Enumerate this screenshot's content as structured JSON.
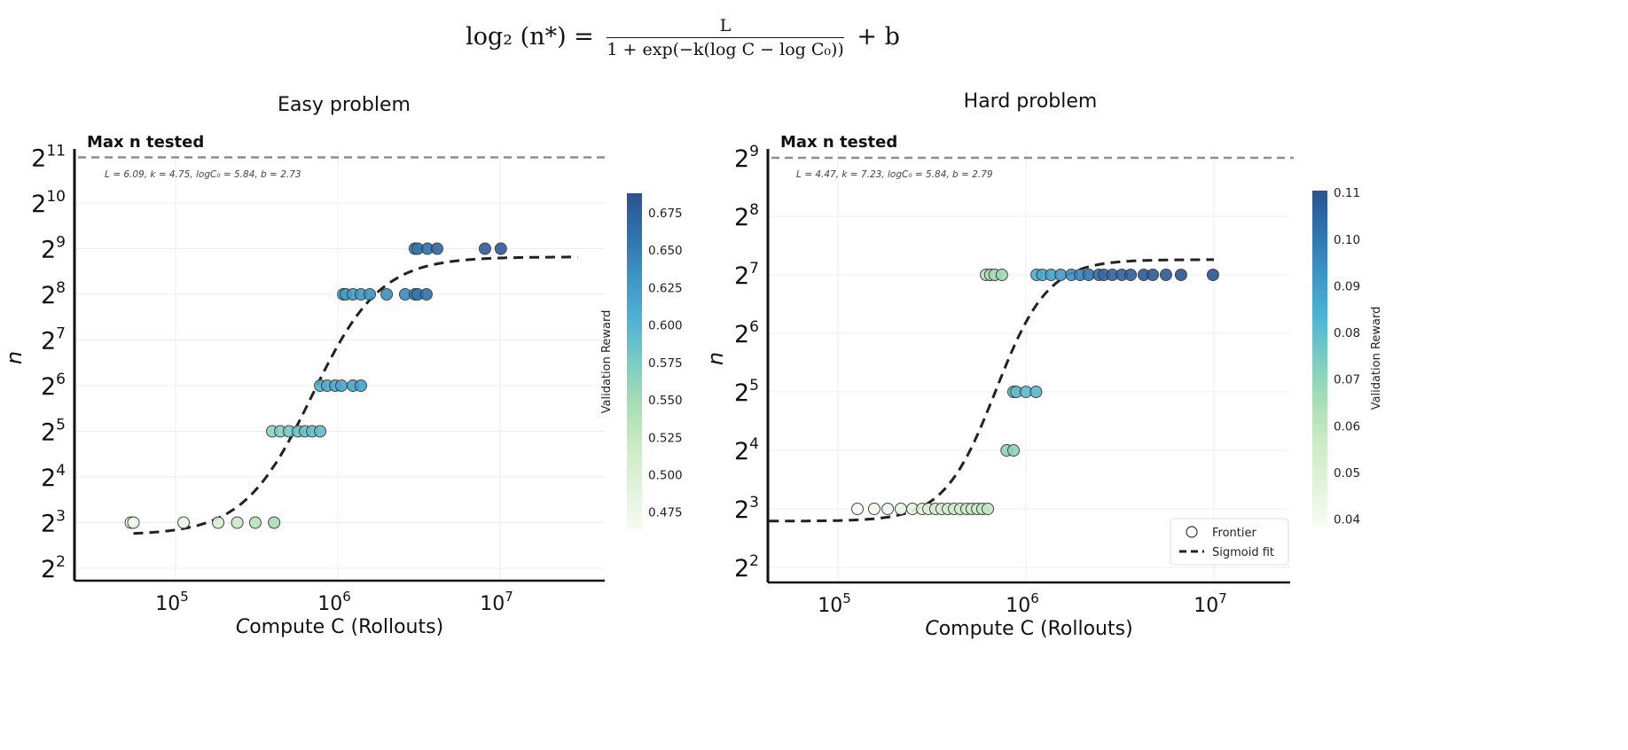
{
  "equation": {
    "lhs": "log₂ (n*) =",
    "numerator": "L",
    "denominator": "1 + exp(−k(log C − log C₀))",
    "tail": "+ b"
  },
  "colormap": [
    "#f7fcf0",
    "#e0f3db",
    "#ccebc5",
    "#a8ddb5",
    "#7bccc4",
    "#4eb3d3",
    "#3d95c6",
    "#2f72b0",
    "#2b5490"
  ],
  "chart_data": [
    {
      "type": "scatter",
      "title": "Easy problem",
      "xlabel": "Compute C (Rollouts)",
      "ylabel": "n",
      "x_scale": "log10",
      "y_scale": "log2",
      "x_ticks": [
        5,
        6,
        7
      ],
      "y_ticks": [
        2,
        3,
        4,
        5,
        6,
        7,
        8,
        9,
        10,
        11
      ],
      "xlim": [
        24000,
        44000000
      ],
      "ylim_exp": [
        2,
        11
      ],
      "grid": true,
      "max_n_label": "Max n tested",
      "max_n_exp": 11,
      "fit_params_text": "L = 6.09, k = 4.75, logC₀ = 5.84, b = 2.73",
      "fit": {
        "L": 6.09,
        "k": 4.75,
        "logC0": 5.84,
        "b": 2.73,
        "x_range": [
          55000,
          30000000
        ]
      },
      "colorbar": {
        "label": "Validation Reward",
        "ticks": [
          "0.475",
          "0.500",
          "0.525",
          "0.550",
          "0.575",
          "0.600",
          "0.625",
          "0.650",
          "0.675"
        ],
        "range": [
          0.463,
          0.688
        ]
      },
      "points": [
        [
          53000,
          3,
          0.47
        ],
        [
          55000,
          3,
          0.472
        ],
        [
          112000,
          3,
          0.478
        ],
        [
          183000,
          3,
          0.505
        ],
        [
          240000,
          3,
          0.52
        ],
        [
          310000,
          3,
          0.535
        ],
        [
          405000,
          3,
          0.545
        ],
        [
          394000,
          5,
          0.565
        ],
        [
          442000,
          5,
          0.57
        ],
        [
          500000,
          5,
          0.578
        ],
        [
          568000,
          5,
          0.585
        ],
        [
          628000,
          5,
          0.588
        ],
        [
          695000,
          5,
          0.59
        ],
        [
          778000,
          5,
          0.592
        ],
        [
          778000,
          6,
          0.605
        ],
        [
          859000,
          6,
          0.61
        ],
        [
          964000,
          6,
          0.612
        ],
        [
          1052000,
          6,
          0.615
        ],
        [
          1239000,
          6,
          0.618
        ],
        [
          1387000,
          6,
          0.62
        ],
        [
          1080000,
          8,
          0.62
        ],
        [
          1120000,
          8,
          0.622
        ],
        [
          1239000,
          8,
          0.625
        ],
        [
          1387000,
          8,
          0.628
        ],
        [
          1574000,
          8,
          0.632
        ],
        [
          2000000,
          8,
          0.635
        ],
        [
          2600000,
          8,
          0.64
        ],
        [
          2985000,
          8,
          0.65
        ],
        [
          3105000,
          8,
          0.655
        ],
        [
          3516000,
          8,
          0.66
        ],
        [
          2985000,
          9,
          0.65
        ],
        [
          3105000,
          9,
          0.655
        ],
        [
          3565000,
          9,
          0.662
        ],
        [
          4090000,
          9,
          0.672
        ],
        [
          8070000,
          9,
          0.678
        ],
        [
          10100000,
          9,
          0.68
        ]
      ]
    },
    {
      "type": "scatter",
      "title": "Hard problem",
      "xlabel": "Compute C (Rollouts)",
      "ylabel": "n",
      "x_scale": "log10",
      "y_scale": "log2",
      "x_ticks": [
        5,
        6,
        7
      ],
      "y_ticks": [
        2,
        3,
        4,
        5,
        6,
        7,
        8,
        9
      ],
      "xlim": [
        42000,
        25000000
      ],
      "ylim_exp": [
        2,
        9
      ],
      "grid": true,
      "max_n_label": "Max n tested",
      "max_n_exp": 9,
      "fit_params_text": "L = 4.47, k = 7.23, logC₀ = 5.84, b = 2.79",
      "fit": {
        "L": 4.47,
        "k": 7.23,
        "logC0": 5.84,
        "b": 2.79,
        "x_range": [
          43000,
          10000000
        ]
      },
      "colorbar": {
        "label": "Validation Reward",
        "ticks": [
          "0.04",
          "0.05",
          "0.06",
          "0.07",
          "0.08",
          "0.09",
          "0.10",
          "0.11"
        ],
        "range": [
          0.0386,
          0.1104
        ]
      },
      "legend": {
        "position": "lower-right",
        "items": [
          "Frontier",
          "Sigmoid fit"
        ]
      },
      "points": [
        [
          127000,
          3,
          0.038
        ],
        [
          156000,
          3,
          0.04
        ],
        [
          184000,
          3,
          0.042
        ],
        [
          216000,
          3,
          0.044
        ],
        [
          249000,
          3,
          0.046
        ],
        [
          281000,
          3,
          0.048
        ],
        [
          303000,
          3,
          0.049
        ],
        [
          330000,
          3,
          0.05
        ],
        [
          356000,
          3,
          0.051
        ],
        [
          385000,
          3,
          0.052
        ],
        [
          415000,
          3,
          0.053
        ],
        [
          448000,
          3,
          0.054
        ],
        [
          483000,
          3,
          0.055
        ],
        [
          515000,
          3,
          0.056
        ],
        [
          551000,
          3,
          0.057
        ],
        [
          587000,
          3,
          0.058
        ],
        [
          627000,
          3,
          0.059
        ],
        [
          790000,
          4,
          0.07
        ],
        [
          859000,
          4,
          0.071
        ],
        [
          859000,
          5,
          0.079
        ],
        [
          889000,
          5,
          0.08
        ],
        [
          1000000,
          5,
          0.081
        ],
        [
          1132000,
          5,
          0.082
        ],
        [
          614000,
          7,
          0.062
        ],
        [
          647000,
          7,
          0.064
        ],
        [
          682000,
          7,
          0.066
        ],
        [
          745000,
          7,
          0.068
        ],
        [
          1140000,
          7,
          0.085
        ],
        [
          1224000,
          7,
          0.087
        ],
        [
          1361000,
          7,
          0.089
        ],
        [
          1531000,
          7,
          0.091
        ],
        [
          1746000,
          7,
          0.093
        ],
        [
          1941000,
          7,
          0.097
        ],
        [
          2158000,
          7,
          0.1
        ],
        [
          2443000,
          7,
          0.102
        ],
        [
          2600000,
          7,
          0.104
        ],
        [
          2884000,
          7,
          0.105
        ],
        [
          3236000,
          7,
          0.106
        ],
        [
          3606000,
          7,
          0.107
        ],
        [
          4236000,
          7,
          0.108
        ],
        [
          4732000,
          7,
          0.109
        ],
        [
          5559000,
          7,
          0.109
        ],
        [
          6683000,
          7,
          0.11
        ],
        [
          9886000,
          7,
          0.11
        ]
      ]
    }
  ]
}
